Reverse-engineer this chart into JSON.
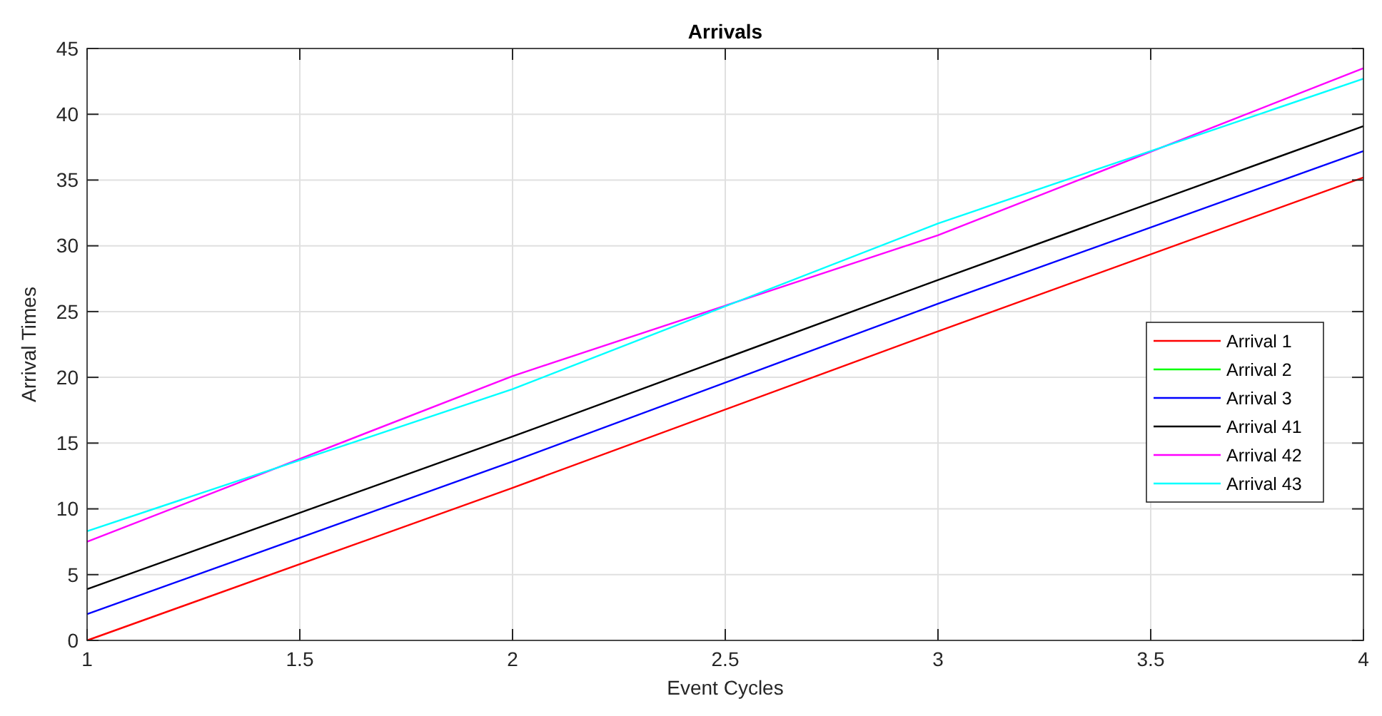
{
  "chart_data": {
    "type": "line",
    "title": "Arrivals",
    "xlabel": "Event Cycles",
    "ylabel": "Arrival Times",
    "x": [
      1,
      2,
      3,
      4
    ],
    "series": [
      {
        "name": "Arrival 1",
        "color": "#ff0000",
        "values": [
          0,
          11.6,
          23.5,
          35.2
        ]
      },
      {
        "name": "Arrival 2",
        "color": "#00ff00",
        "values": [
          null,
          null,
          null,
          null
        ]
      },
      {
        "name": "Arrival 3",
        "color": "#0000ff",
        "values": [
          2,
          13.6,
          25.6,
          37.2
        ]
      },
      {
        "name": "Arrival 41",
        "color": "#000000",
        "values": [
          3.9,
          15.5,
          27.4,
          39.1
        ]
      },
      {
        "name": "Arrival 42",
        "color": "#ff00ff",
        "values": [
          7.5,
          20.1,
          30.8,
          43.5
        ]
      },
      {
        "name": "Arrival 43",
        "color": "#00ffff",
        "values": [
          8.3,
          19.1,
          31.7,
          42.7
        ]
      }
    ],
    "xlim": [
      1,
      4
    ],
    "xticks": [
      1,
      1.5,
      2,
      2.5,
      3,
      3.5,
      4
    ],
    "ylim": [
      0,
      45
    ],
    "yticks": [
      0,
      5,
      10,
      15,
      20,
      25,
      30,
      35,
      40,
      45
    ],
    "grid": true,
    "legend": "right",
    "line_style": "solid",
    "marker": "none"
  }
}
